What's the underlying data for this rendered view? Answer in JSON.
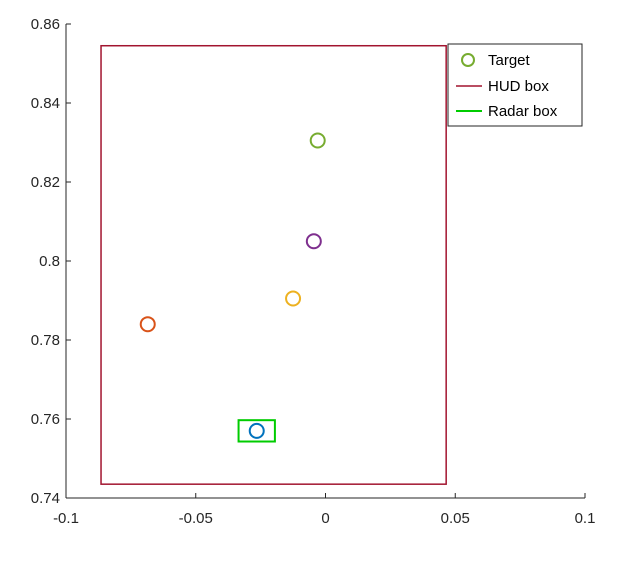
{
  "chart_data": {
    "type": "scatter",
    "title": "",
    "xlabel": "",
    "ylabel": "",
    "xlim": [
      -0.1,
      0.1
    ],
    "ylim": [
      0.74,
      0.86
    ],
    "x_ticks": [
      -0.1,
      -0.05,
      0,
      0.05,
      0.1
    ],
    "x_tick_labels": [
      "-0.1",
      "-0.05",
      "0",
      "0.05",
      "0.1"
    ],
    "y_ticks": [
      0.74,
      0.76,
      0.78,
      0.8,
      0.82,
      0.84,
      0.86
    ],
    "y_tick_labels": [
      "0.74",
      "0.76",
      "0.78",
      "0.8",
      "0.82",
      "0.84",
      "0.86"
    ],
    "grid": false,
    "legend_position": "top-right",
    "legend": [
      {
        "label": "Target",
        "symbol": "circle",
        "color": "#77ac30"
      },
      {
        "label": "HUD box",
        "symbol": "line",
        "color": "#a2142f"
      },
      {
        "label": "Radar box",
        "symbol": "line",
        "color": "#00cc00"
      }
    ],
    "points": [
      {
        "x": -0.003,
        "y": 0.8305,
        "color": "#77ac30"
      },
      {
        "x": -0.0045,
        "y": 0.805,
        "color": "#7e2f8e"
      },
      {
        "x": -0.0125,
        "y": 0.7905,
        "color": "#edb120"
      },
      {
        "x": -0.0685,
        "y": 0.784,
        "color": "#d95319"
      },
      {
        "x": -0.0265,
        "y": 0.757,
        "color": "#0072bd"
      }
    ],
    "hud_box": {
      "x": [
        -0.0865,
        0.0465
      ],
      "y": [
        0.7435,
        0.8545
      ],
      "color": "#a2142f"
    },
    "radar_box": {
      "x": [
        -0.0335,
        -0.0195
      ],
      "y": [
        0.7543,
        0.7597
      ],
      "color": "#00cc00"
    }
  }
}
